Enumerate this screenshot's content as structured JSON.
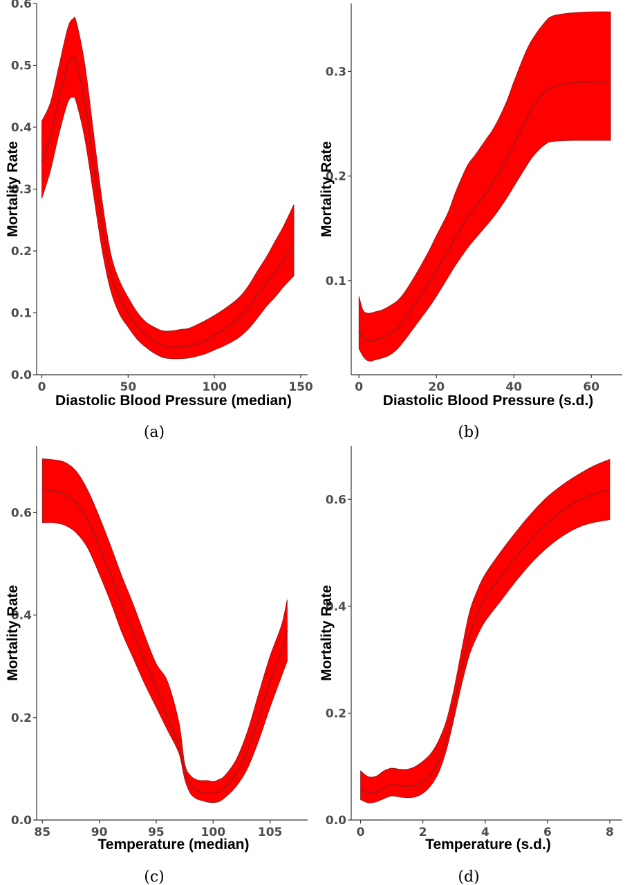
{
  "chart_data": [
    {
      "type": "area",
      "caption": "(a)",
      "xlabel": "Diastolic Blood Pressure (median)",
      "ylabel": "Mortality Rate",
      "xlim": [
        -3,
        154
      ],
      "ylim": [
        0,
        0.6
      ],
      "xticks": [
        0,
        50,
        100,
        150
      ],
      "yticks": [
        0.0,
        0.1,
        0.2,
        0.3,
        0.4,
        0.5,
        0.6
      ],
      "ytick_labels": [
        "0.0",
        "0.1",
        "0.2",
        "0.3",
        "0.4",
        "0.5",
        "0.6"
      ],
      "grid": false,
      "x": [
        0,
        5,
        10,
        15,
        18,
        20,
        25,
        30,
        35,
        40,
        45,
        50,
        55,
        60,
        65,
        70,
        75,
        80,
        85,
        90,
        95,
        100,
        105,
        110,
        115,
        120,
        125,
        130,
        135,
        140,
        146
      ],
      "mean": [
        0.345,
        0.385,
        0.445,
        0.5,
        0.512,
        0.505,
        0.44,
        0.34,
        0.24,
        0.165,
        0.125,
        0.1,
        0.08,
        0.065,
        0.055,
        0.047,
        0.044,
        0.045,
        0.046,
        0.05,
        0.056,
        0.064,
        0.072,
        0.082,
        0.094,
        0.11,
        0.13,
        0.148,
        0.165,
        0.185,
        0.21
      ],
      "lower": [
        0.285,
        0.33,
        0.39,
        0.44,
        0.448,
        0.44,
        0.38,
        0.29,
        0.2,
        0.135,
        0.098,
        0.077,
        0.058,
        0.045,
        0.035,
        0.028,
        0.026,
        0.026,
        0.027,
        0.03,
        0.034,
        0.04,
        0.046,
        0.053,
        0.062,
        0.075,
        0.092,
        0.11,
        0.125,
        0.142,
        0.16
      ],
      "upper": [
        0.41,
        0.44,
        0.5,
        0.56,
        0.575,
        0.57,
        0.5,
        0.39,
        0.28,
        0.195,
        0.152,
        0.125,
        0.102,
        0.086,
        0.077,
        0.071,
        0.071,
        0.073,
        0.075,
        0.081,
        0.088,
        0.096,
        0.105,
        0.115,
        0.127,
        0.145,
        0.168,
        0.19,
        0.215,
        0.24,
        0.275
      ]
    },
    {
      "type": "area",
      "caption": "(b)",
      "xlabel": "Diastolic Blood Pressure (s.d.)",
      "ylabel": "Mortality Rate",
      "xlim": [
        -2,
        68
      ],
      "ylim": [
        0.01,
        0.365
      ],
      "xticks": [
        0,
        20,
        40,
        60
      ],
      "yticks": [
        0.1,
        0.2,
        0.3
      ],
      "ytick_labels": [
        "0.1",
        "0.2",
        "0.3"
      ],
      "grid": false,
      "x": [
        0,
        1,
        2,
        3,
        4,
        6,
        8,
        10,
        12,
        15,
        18,
        20,
        23,
        25,
        28,
        30,
        33,
        35,
        38,
        40,
        43,
        45,
        48,
        50,
        55,
        60,
        65
      ],
      "mean": [
        0.052,
        0.046,
        0.043,
        0.042,
        0.043,
        0.045,
        0.049,
        0.055,
        0.064,
        0.08,
        0.097,
        0.11,
        0.128,
        0.142,
        0.16,
        0.17,
        0.185,
        0.196,
        0.215,
        0.23,
        0.252,
        0.266,
        0.28,
        0.285,
        0.289,
        0.29,
        0.29
      ],
      "lower": [
        0.035,
        0.028,
        0.024,
        0.023,
        0.024,
        0.026,
        0.029,
        0.035,
        0.044,
        0.059,
        0.074,
        0.085,
        0.103,
        0.115,
        0.131,
        0.14,
        0.153,
        0.162,
        0.178,
        0.19,
        0.208,
        0.219,
        0.23,
        0.233,
        0.234,
        0.234,
        0.234
      ],
      "upper": [
        0.085,
        0.072,
        0.069,
        0.069,
        0.07,
        0.072,
        0.076,
        0.081,
        0.09,
        0.108,
        0.128,
        0.143,
        0.165,
        0.185,
        0.21,
        0.22,
        0.236,
        0.247,
        0.27,
        0.29,
        0.318,
        0.332,
        0.347,
        0.353,
        0.356,
        0.357,
        0.357
      ]
    },
    {
      "type": "area",
      "caption": "(c)",
      "xlabel": "Temperature (median)",
      "ylabel": "Mortality Rate",
      "xlim": [
        84.5,
        108.3
      ],
      "ylim": [
        0,
        0.73
      ],
      "xticks": [
        85,
        90,
        95,
        100,
        105
      ],
      "yticks": [
        0.0,
        0.2,
        0.4,
        0.6
      ],
      "ytick_labels": [
        "0.0",
        "0.2",
        "0.4",
        "0.6"
      ],
      "grid": false,
      "x": [
        85,
        86,
        87,
        88,
        89,
        90,
        91,
        92,
        93,
        94,
        95,
        96,
        97,
        97.5,
        98,
        98.5,
        99,
        99.5,
        100,
        100.5,
        101,
        102,
        103,
        104,
        105,
        106,
        106.5
      ],
      "mean": [
        0.645,
        0.642,
        0.635,
        0.618,
        0.585,
        0.535,
        0.478,
        0.418,
        0.365,
        0.31,
        0.26,
        0.2,
        0.145,
        0.095,
        0.07,
        0.058,
        0.054,
        0.052,
        0.052,
        0.055,
        0.063,
        0.09,
        0.135,
        0.2,
        0.27,
        0.33,
        0.37
      ],
      "lower": [
        0.58,
        0.58,
        0.575,
        0.56,
        0.53,
        0.48,
        0.425,
        0.365,
        0.315,
        0.265,
        0.22,
        0.175,
        0.13,
        0.08,
        0.052,
        0.042,
        0.038,
        0.035,
        0.034,
        0.036,
        0.043,
        0.065,
        0.1,
        0.155,
        0.22,
        0.28,
        0.31
      ],
      "upper": [
        0.705,
        0.703,
        0.698,
        0.68,
        0.643,
        0.592,
        0.535,
        0.475,
        0.42,
        0.36,
        0.305,
        0.27,
        0.19,
        0.11,
        0.087,
        0.079,
        0.077,
        0.077,
        0.075,
        0.079,
        0.086,
        0.117,
        0.172,
        0.247,
        0.32,
        0.38,
        0.43
      ]
    },
    {
      "type": "area",
      "caption": "(d)",
      "xlabel": "Temperature (s.d.)",
      "ylabel": "Mortality Rate",
      "xlim": [
        -0.3,
        8.4
      ],
      "ylim": [
        0,
        0.7
      ],
      "xticks": [
        0,
        2,
        4,
        6,
        8
      ],
      "yticks": [
        0.0,
        0.2,
        0.4,
        0.6
      ],
      "ytick_labels": [
        "0.0",
        "0.2",
        "0.4",
        "0.6"
      ],
      "grid": false,
      "x": [
        0,
        0.25,
        0.5,
        0.75,
        1,
        1.25,
        1.5,
        1.75,
        2,
        2.25,
        2.5,
        2.75,
        3,
        3.25,
        3.5,
        3.75,
        4,
        4.5,
        5,
        5.5,
        6,
        6.5,
        7,
        7.5,
        8
      ],
      "mean": [
        0.057,
        0.05,
        0.052,
        0.06,
        0.066,
        0.064,
        0.063,
        0.065,
        0.072,
        0.086,
        0.11,
        0.152,
        0.215,
        0.285,
        0.345,
        0.385,
        0.415,
        0.455,
        0.493,
        0.527,
        0.556,
        0.58,
        0.598,
        0.61,
        0.618
      ],
      "lower": [
        0.038,
        0.032,
        0.034,
        0.04,
        0.045,
        0.043,
        0.042,
        0.043,
        0.05,
        0.064,
        0.088,
        0.13,
        0.19,
        0.255,
        0.31,
        0.345,
        0.372,
        0.41,
        0.448,
        0.482,
        0.51,
        0.532,
        0.548,
        0.557,
        0.562
      ],
      "upper": [
        0.092,
        0.081,
        0.082,
        0.092,
        0.097,
        0.095,
        0.095,
        0.1,
        0.11,
        0.124,
        0.148,
        0.185,
        0.245,
        0.32,
        0.39,
        0.43,
        0.46,
        0.502,
        0.54,
        0.575,
        0.605,
        0.628,
        0.647,
        0.663,
        0.675
      ]
    }
  ]
}
